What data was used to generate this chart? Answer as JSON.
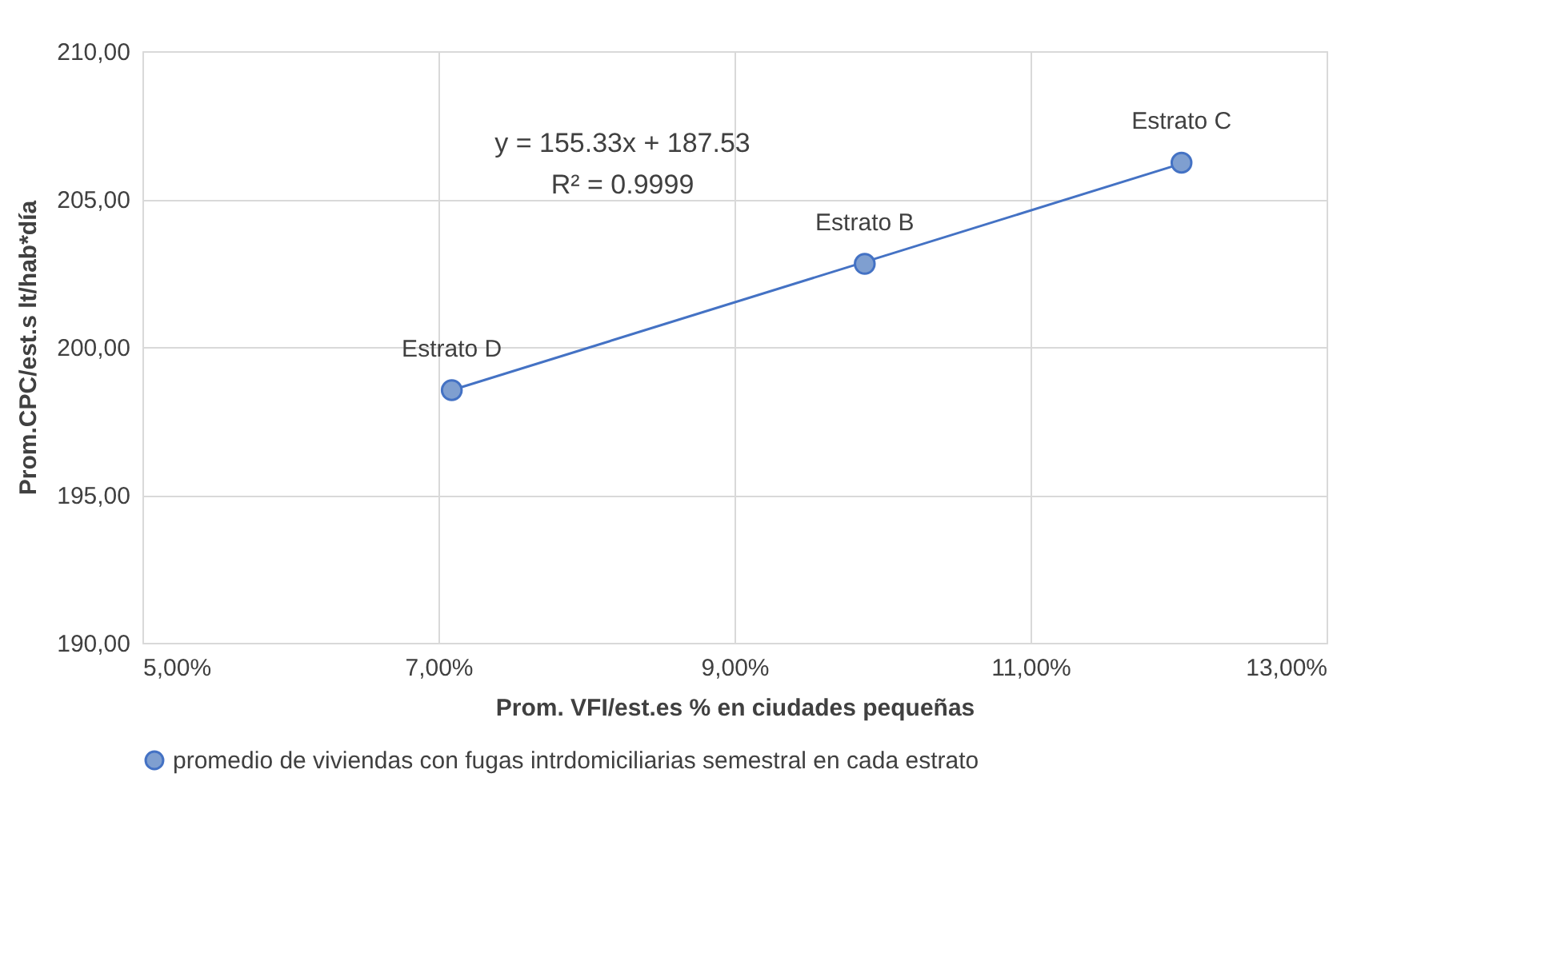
{
  "chart_data": {
    "type": "scatter",
    "xlabel": "Prom. VFI/est.es % en ciudades pequeñas",
    "ylabel": "Prom.CPC/est.s lt/hab*día",
    "x": [
      7.09,
      9.88,
      12.02
    ],
    "series": [
      {
        "name": "promedio de viviendas con fugas intrdomiciliarias semestral en cada estrato",
        "color": "#7f9fd0",
        "values": [
          198.54,
          202.81,
          206.23
        ],
        "marker": "circle"
      },
      {
        "type": "line",
        "color": "#4472c4",
        "x": [
          7.09,
          12.02
        ],
        "values": [
          198.54,
          206.2
        ],
        "line_style": "solid",
        "marker": "none"
      }
    ],
    "xlim": [
      5,
      13
    ],
    "xticks": [
      {
        "value": 5,
        "label": "5,00%"
      },
      {
        "value": 7,
        "label": "7,00%"
      },
      {
        "value": 9,
        "label": "9,00%"
      },
      {
        "value": 11,
        "label": "11,00%"
      },
      {
        "value": 13,
        "label": "13,00%"
      }
    ],
    "ylim": [
      190,
      210
    ],
    "yticks": [
      {
        "value": 190,
        "label": "190,00"
      },
      {
        "value": 195,
        "label": "195,00"
      },
      {
        "value": 200,
        "label": "200,00"
      },
      {
        "value": 205,
        "label": "205,00"
      },
      {
        "value": 210,
        "label": "210,00"
      }
    ],
    "grid": true,
    "legend": "bottom",
    "annotations": [
      {
        "text": "Estrato D",
        "x": 7.09,
        "y": 198.54
      },
      {
        "text": "Estrato B",
        "x": 9.88,
        "y": 202.81
      },
      {
        "text": "Estrato  C",
        "x": 12.02,
        "y": 206.23
      },
      "y = 155.33x + 187.53\nR² = 0.9999"
    ]
  }
}
